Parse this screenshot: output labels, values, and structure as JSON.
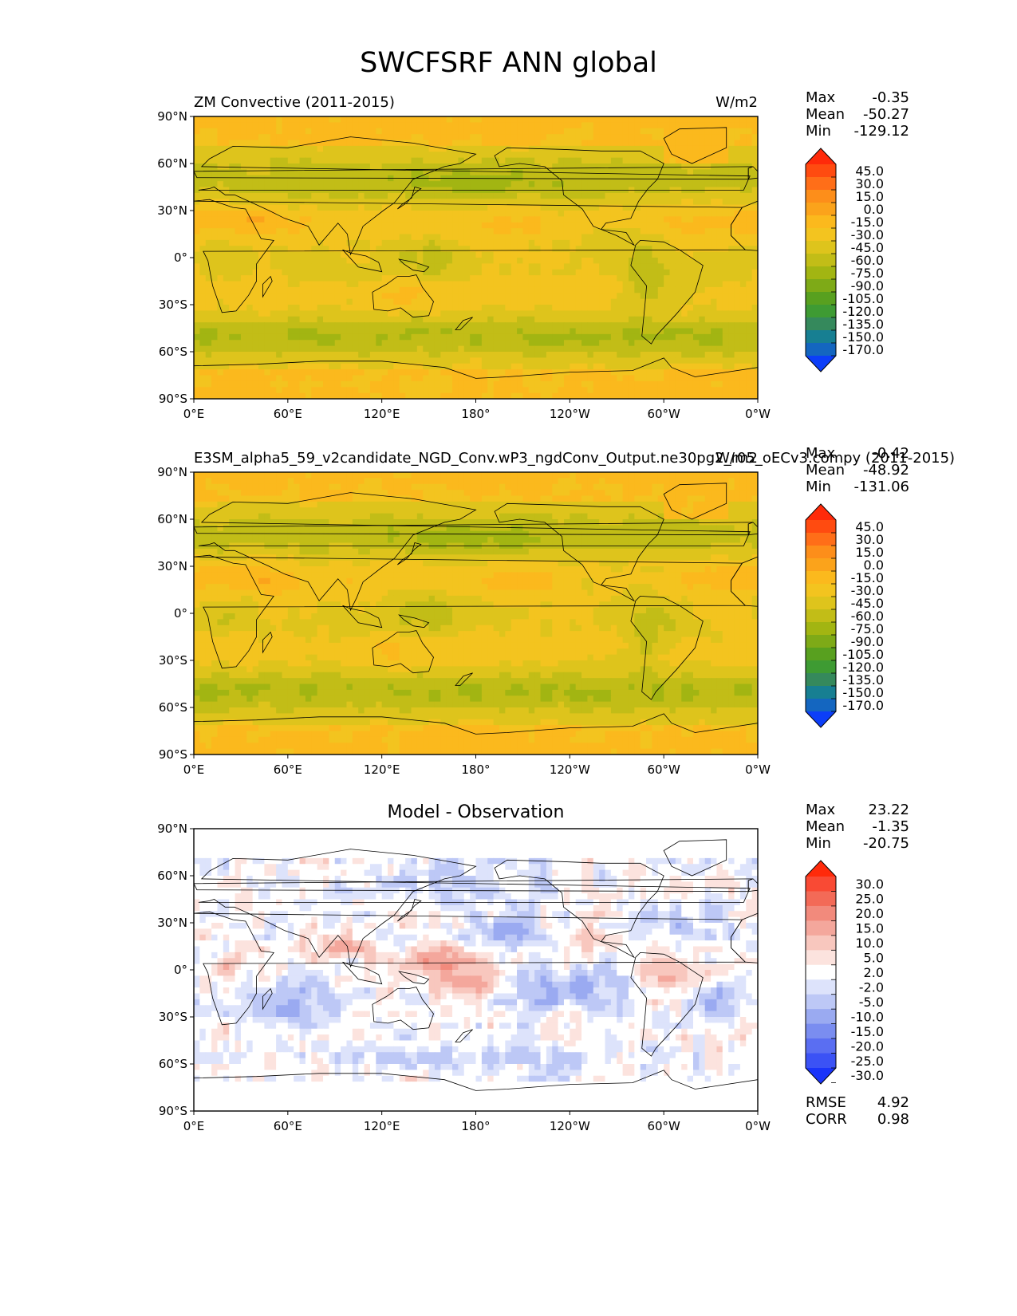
{
  "title": "SWCFSRF ANN global",
  "chart_data": [
    {
      "type": "heatmap",
      "kind": "filled-contour-map",
      "title": "ZM Convective (2011-2015)",
      "units": "W/m2",
      "stats": [
        {
          "label": "Max",
          "value": "-0.35"
        },
        {
          "label": "Mean",
          "value": "-50.27"
        },
        {
          "label": "Min",
          "value": "-129.12"
        }
      ],
      "x_ticks": [
        "0°E",
        "60°E",
        "120°E",
        "180°",
        "120°W",
        "60°W",
        "0°W"
      ],
      "y_ticks": [
        "90°N",
        "60°N",
        "30°N",
        "0°",
        "30°S",
        "60°S",
        "90°S"
      ],
      "xlim": [
        0,
        360
      ],
      "ylim": [
        -90,
        90
      ],
      "colorbar": {
        "levels": [
          "45.0",
          "30.0",
          "15.0",
          "0.0",
          "-15.0",
          "-30.0",
          "-45.0",
          "-60.0",
          "-75.0",
          "-90.0",
          "-105.0",
          "-120.0",
          "-135.0",
          "-150.0",
          "-170.0"
        ],
        "colors": [
          "#ff2a0a",
          "#ff4b10",
          "#ff6e18",
          "#fd8e1a",
          "#fba31b",
          "#fbb91d",
          "#f3c41f",
          "#dec41c",
          "#c2bd17",
          "#a2b512",
          "#7eaa17",
          "#58a01f",
          "#3e9b33",
          "#35895c",
          "#177f92",
          "#1466c0",
          "#0c3ef8"
        ]
      }
    },
    {
      "type": "heatmap",
      "kind": "filled-contour-map",
      "title": "E3SM_alpha5_59_v2candidate_NGD_Conv.wP3_ngdConv_Output.ne30pg2_r05_oECv3.compy (2011-2015)",
      "units": "W/m2",
      "stats": [
        {
          "label": "Max",
          "value": "-0.42"
        },
        {
          "label": "Mean",
          "value": "-48.92"
        },
        {
          "label": "Min",
          "value": "-131.06"
        }
      ],
      "x_ticks": [
        "0°E",
        "60°E",
        "120°E",
        "180°",
        "120°W",
        "60°W",
        "0°W"
      ],
      "y_ticks": [
        "90°N",
        "60°N",
        "30°N",
        "0°",
        "30°S",
        "60°S",
        "90°S"
      ],
      "xlim": [
        0,
        360
      ],
      "ylim": [
        -90,
        90
      ],
      "colorbar": {
        "levels": [
          "45.0",
          "30.0",
          "15.0",
          "0.0",
          "-15.0",
          "-30.0",
          "-45.0",
          "-60.0",
          "-75.0",
          "-90.0",
          "-105.0",
          "-120.0",
          "-135.0",
          "-150.0",
          "-170.0"
        ],
        "colors": [
          "#ff2a0a",
          "#ff4b10",
          "#ff6e18",
          "#fd8e1a",
          "#fba31b",
          "#fbb91d",
          "#f3c41f",
          "#dec41c",
          "#c2bd17",
          "#a2b512",
          "#7eaa17",
          "#58a01f",
          "#3e9b33",
          "#35895c",
          "#177f92",
          "#1466c0",
          "#0c3ef8"
        ]
      }
    },
    {
      "type": "heatmap",
      "kind": "filled-contour-map",
      "title": "Model - Observation",
      "stats": [
        {
          "label": "Max",
          "value": "23.22"
        },
        {
          "label": "Mean",
          "value": "-1.35"
        },
        {
          "label": "Min",
          "value": "-20.75"
        }
      ],
      "extra_stats": [
        {
          "label": "RMSE",
          "value": "4.92"
        },
        {
          "label": "CORR",
          "value": "0.98"
        }
      ],
      "x_ticks": [
        "0°E",
        "60°E",
        "120°E",
        "180°",
        "120°W",
        "60°W",
        "0°W"
      ],
      "y_ticks": [
        "90°N",
        "60°N",
        "30°N",
        "0°",
        "30°S",
        "60°S",
        "90°S"
      ],
      "xlim": [
        0,
        360
      ],
      "ylim": [
        -90,
        90
      ],
      "colorbar": {
        "levels": [
          "30.0",
          "25.0",
          "20.0",
          "15.0",
          "10.0",
          "5.0",
          "2.0",
          "-2.0",
          "-5.0",
          "-10.0",
          "-15.0",
          "-20.0",
          "-25.0",
          "-30.0"
        ],
        "colors": [
          "#ff2a0a",
          "#f94a34",
          "#f36a57",
          "#f28a7c",
          "#f4a79c",
          "#f8c7be",
          "#fce3de",
          "#ffffff",
          "#dde3fb",
          "#bdc8f6",
          "#9aaaf1",
          "#7a8df0",
          "#5a6ef2",
          "#3b52f5",
          "#1a34fa"
        ]
      }
    }
  ]
}
